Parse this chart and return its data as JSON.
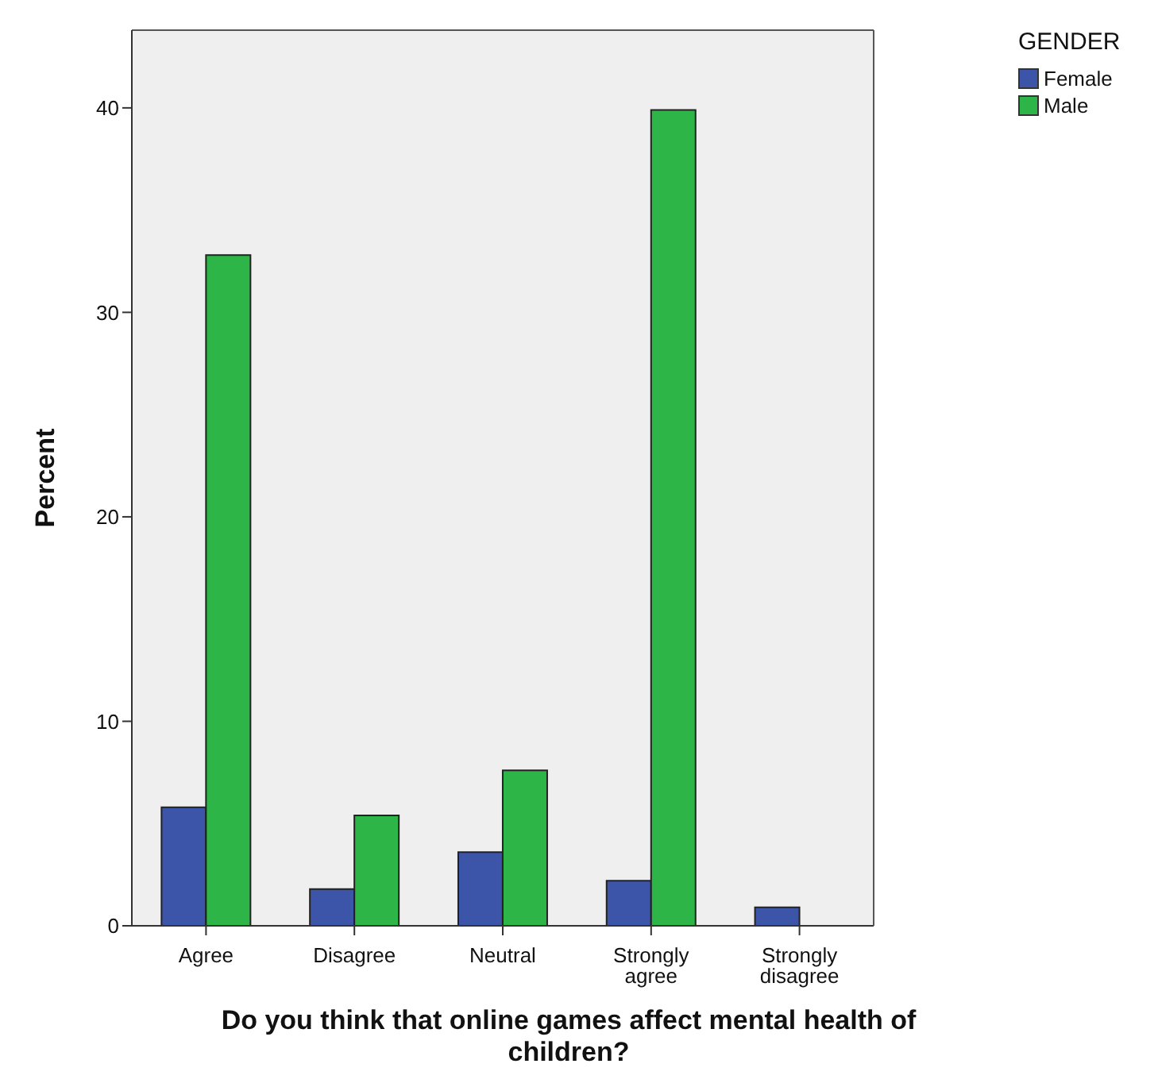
{
  "chart_data": {
    "type": "bar",
    "xlabel": "Do you think that online games affect mental health of children?",
    "ylabel": "Percent",
    "legend_title": "GENDER",
    "legend": "top right",
    "categories": [
      "Agree",
      "Disagree",
      "Neutral",
      "Strongly agree",
      "Strongly disagree"
    ],
    "series": [
      {
        "name": "Female",
        "color": "#3d55a8",
        "values": [
          5.8,
          1.8,
          3.6,
          2.2,
          0.9
        ]
      },
      {
        "name": "Male",
        "color": "#2db548",
        "values": [
          32.8,
          5.4,
          7.6,
          39.9,
          0
        ]
      }
    ],
    "ylim": [
      0,
      43.8
    ],
    "yticks": [
      0,
      10,
      20,
      30,
      40
    ]
  }
}
